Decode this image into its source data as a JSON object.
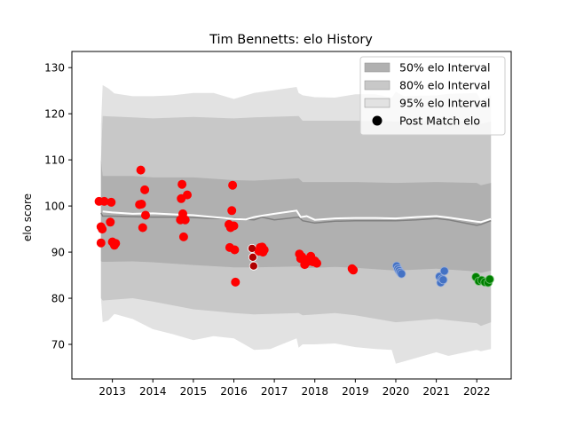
{
  "chart_data": {
    "type": "scatter",
    "title": "Tim Bennetts: elo History",
    "xlabel": "",
    "ylabel": "elo score",
    "xlim": [
      2012.0,
      2022.85
    ],
    "ylim": [
      62.5,
      133.5
    ],
    "xticks": [
      2013,
      2014,
      2015,
      2016,
      2017,
      2018,
      2019,
      2020,
      2021,
      2022
    ],
    "yticks": [
      70,
      80,
      90,
      100,
      110,
      120,
      130
    ],
    "grid": false,
    "legend": {
      "placement": "top-right",
      "entries": [
        {
          "label": "50% elo Interval",
          "kind": "patch",
          "color": "#b0b0b0"
        },
        {
          "label": "80% elo Interval",
          "kind": "patch",
          "color": "#c8c8c8"
        },
        {
          "label": "95% elo Interval",
          "kind": "patch",
          "color": "#e2e2e2"
        },
        {
          "label": "Post Match elo",
          "kind": "marker",
          "color": "#000000"
        }
      ]
    },
    "bands": [
      {
        "name": "95% elo Interval",
        "color": "#e2e2e2",
        "x": [
          2012.72,
          2012.76,
          2012.9,
          2013.05,
          2013.5,
          2014.0,
          2014.5,
          2015.0,
          2015.5,
          2016.0,
          2016.5,
          2016.9,
          2017.55,
          2017.6,
          2017.7,
          2018.0,
          2018.5,
          2019.0,
          2019.5,
          2019.9,
          2020.0,
          2020.2,
          2021.0,
          2021.3,
          2022.0,
          2022.1,
          2022.35
        ],
        "upper": [
          117.5,
          126.2,
          125.5,
          124.4,
          123.8,
          123.8,
          124.0,
          124.5,
          124.5,
          123.2,
          124.5,
          125.0,
          125.8,
          124.5,
          124.0,
          123.6,
          123.5,
          124.2,
          124.2,
          123.5,
          124.8,
          123.8,
          124.0,
          124.3,
          124.5,
          123.0,
          124.0
        ],
        "lower": [
          80.0,
          74.8,
          75.2,
          76.6,
          75.5,
          73.3,
          72.2,
          70.9,
          71.8,
          71.3,
          68.8,
          69.0,
          71.3,
          69.3,
          70.0,
          70.0,
          70.2,
          69.4,
          69.0,
          68.8,
          65.8,
          66.3,
          68.3,
          67.5,
          68.8,
          68.5,
          69.0
        ]
      },
      {
        "name": "80% elo Interval",
        "color": "#c8c8c8",
        "x": [
          2012.72,
          2012.76,
          2013.5,
          2014.0,
          2015.0,
          2016.0,
          2016.5,
          2017.6,
          2017.7,
          2018.5,
          2019.0,
          2020.0,
          2021.0,
          2022.0,
          2022.1,
          2022.35
        ],
        "upper": [
          110.0,
          119.5,
          119.2,
          119.0,
          119.3,
          119.0,
          119.2,
          119.5,
          118.5,
          118.5,
          118.5,
          118.3,
          118.5,
          118.3,
          117.8,
          118.3
        ],
        "lower": [
          80.0,
          79.5,
          80.0,
          79.3,
          77.6,
          76.8,
          76.5,
          76.8,
          76.3,
          76.8,
          76.3,
          74.8,
          75.5,
          74.6,
          74.0,
          74.8
        ]
      },
      {
        "name": "50% elo Interval",
        "color": "#b0b0b0",
        "x": [
          2012.72,
          2012.76,
          2013.5,
          2014.0,
          2015.0,
          2016.0,
          2016.5,
          2017.6,
          2017.7,
          2018.5,
          2019.0,
          2020.0,
          2021.0,
          2022.0,
          2022.1,
          2022.35
        ],
        "upper": [
          110.0,
          106.5,
          106.5,
          106.2,
          106.2,
          105.6,
          105.5,
          106.0,
          105.2,
          105.2,
          105.2,
          105.0,
          105.2,
          105.0,
          104.5,
          105.0
        ],
        "lower": [
          88.0,
          87.9,
          88.0,
          87.8,
          87.2,
          86.7,
          86.7,
          86.9,
          86.5,
          86.8,
          86.6,
          86.0,
          86.4,
          85.8,
          85.5,
          86.0
        ]
      }
    ],
    "mean_line": {
      "color": "#808080",
      "x": [
        2012.72,
        2012.76,
        2013.0,
        2013.5,
        2014.0,
        2014.5,
        2015.0,
        2015.5,
        2016.0,
        2016.5,
        2016.7,
        2017.0,
        2017.6,
        2017.7,
        2018.0,
        2018.5,
        2019.0,
        2019.5,
        2020.0,
        2020.5,
        2021.0,
        2021.3,
        2022.0,
        2022.1,
        2022.35
      ],
      "y": [
        98.5,
        97.8,
        97.8,
        97.7,
        97.6,
        97.6,
        97.5,
        97.3,
        97.3,
        97.0,
        97.6,
        97.0,
        97.6,
        96.8,
        96.3,
        96.7,
        96.8,
        96.8,
        96.8,
        97.0,
        97.3,
        97.0,
        95.8,
        96.0,
        96.8
      ]
    },
    "median_line": {
      "color": "#ffffff",
      "x": [
        2012.76,
        2013.0,
        2013.5,
        2014.0,
        2014.5,
        2015.0,
        2015.5,
        2016.0,
        2016.3,
        2016.5,
        2016.7,
        2017.0,
        2017.55,
        2017.65,
        2017.8,
        2018.0,
        2018.5,
        2019.0,
        2019.5,
        2020.0,
        2020.5,
        2021.0,
        2021.3,
        2022.0,
        2022.1,
        2022.35
      ],
      "y": [
        98.8,
        98.6,
        98.3,
        98.4,
        98.2,
        98.0,
        97.6,
        97.2,
        97.1,
        97.6,
        97.9,
        98.3,
        99.0,
        97.6,
        97.8,
        97.0,
        97.3,
        97.4,
        97.4,
        97.3,
        97.6,
        97.8,
        97.5,
        96.6,
        96.5,
        97.2
      ]
    },
    "series": [
      {
        "color": "#ff0000",
        "x": [
          2012.67,
          2012.72,
          2012.72,
          2012.75,
          2012.8,
          2012.95,
          2012.97,
          2013.0,
          2013.05,
          2013.08,
          2013.67,
          2013.7,
          2013.72,
          2013.75,
          2013.8,
          2013.82,
          2014.68,
          2014.7,
          2014.72,
          2014.74,
          2014.76,
          2014.8,
          2014.85,
          2015.88,
          2015.9,
          2015.92,
          2015.95,
          2015.97,
          2016.0,
          2016.02,
          2016.04
        ],
        "y": [
          101.0,
          95.5,
          92.0,
          95.0,
          101.0,
          96.5,
          100.8,
          92.2,
          91.5,
          91.9,
          100.3,
          107.8,
          100.4,
          95.3,
          103.5,
          98.0,
          97.0,
          101.6,
          104.7,
          98.3,
          93.3,
          97.0,
          102.4,
          96.0,
          91.0,
          95.3,
          99.0,
          104.5,
          95.7,
          90.5,
          83.5
        ]
      },
      {
        "color": "#b00000",
        "edge": "#ffffff",
        "x": [
          2016.45,
          2016.47,
          2016.49
        ],
        "y": [
          90.8,
          88.9,
          87.0
        ]
      },
      {
        "color": "#ff0000",
        "x": [
          2016.62,
          2016.65,
          2016.68,
          2016.7,
          2016.72,
          2016.75,
          2017.62,
          2017.65,
          2017.68,
          2017.7,
          2017.75,
          2017.8,
          2017.85,
          2017.9,
          2017.95,
          2018.0,
          2018.05,
          2018.92,
          2018.95
        ],
        "y": [
          90.2,
          91.0,
          90.5,
          91.1,
          90.0,
          90.5,
          89.6,
          88.6,
          89.0,
          88.5,
          87.3,
          88.3,
          88.0,
          89.1,
          87.9,
          88.1,
          87.6,
          86.4,
          86.1
        ]
      },
      {
        "color": "#4472c4",
        "edge": "#9ab0dc",
        "x": [
          2020.02,
          2020.05,
          2020.08,
          2020.11,
          2020.14,
          2021.08,
          2021.11,
          2021.14,
          2021.17,
          2021.2
        ],
        "y": [
          87.0,
          86.4,
          86.0,
          85.6,
          85.3,
          84.7,
          83.4,
          84.2,
          84.0,
          85.9
        ]
      },
      {
        "color": "#008000",
        "edge": "#6fbf6f",
        "x": [
          2021.98,
          2022.05,
          2022.12,
          2022.2,
          2022.28,
          2022.32
        ],
        "y": [
          84.6,
          83.7,
          83.9,
          83.5,
          83.4,
          84.1
        ]
      }
    ]
  }
}
